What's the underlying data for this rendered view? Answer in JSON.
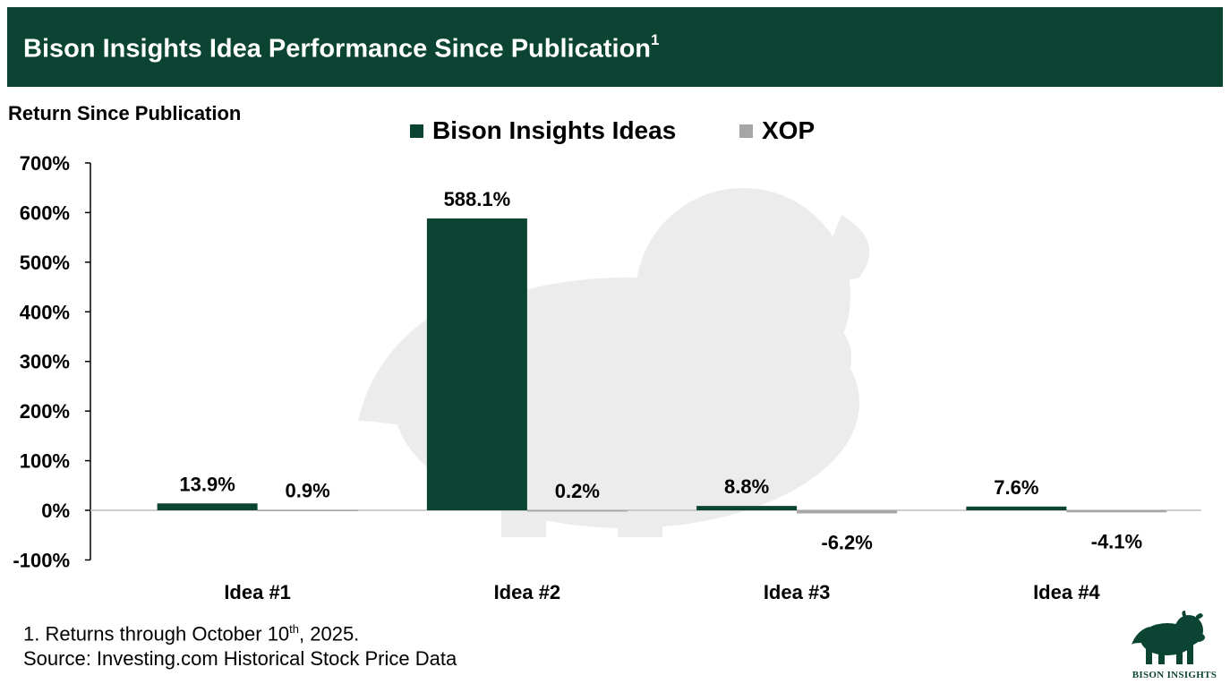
{
  "banner": {
    "title": "Bison Insights Idea Performance Since Publication",
    "superscript": "1"
  },
  "chart_data": {
    "type": "bar",
    "title": "Bison Insights Idea Performance Since Publication",
    "ylabel": "Return Since Publication",
    "xlabel": "",
    "categories": [
      "Idea #1",
      "Idea #2",
      "Idea #3",
      "Idea #4"
    ],
    "series": [
      {
        "name": "Bison Insights Ideas",
        "color": "#0b4432",
        "values": [
          13.9,
          588.1,
          8.8,
          7.6
        ],
        "labels": [
          "13.9%",
          "588.1%",
          "8.8%",
          "7.6%"
        ]
      },
      {
        "name": "XOP",
        "color": "#a6a6a6",
        "values": [
          0.9,
          0.2,
          -6.2,
          -4.1
        ],
        "labels": [
          "0.9%",
          "0.2%",
          "-6.2%",
          "-4.1%"
        ]
      }
    ],
    "ylim": [
      -100,
      700
    ],
    "yticks": [
      700,
      600,
      500,
      400,
      300,
      200,
      100,
      0,
      -100
    ],
    "ytick_labels": [
      "700%",
      "600%",
      "500%",
      "400%",
      "300%",
      "200%",
      "100%",
      "0%",
      "-100%"
    ],
    "grid": false,
    "legend_position": "top-center"
  },
  "footnotes": {
    "note1_prefix": "1. Returns through October 10",
    "note1_sup": "th",
    "note1_suffix": ", 2025.",
    "source": "Source: Investing.com Historical Stock Price Data"
  },
  "logo": {
    "text": "BISON INSIGHTS"
  },
  "colors": {
    "brand_green": "#0b4432",
    "xop_gray": "#a6a6a6",
    "watermark": "#ececec"
  }
}
